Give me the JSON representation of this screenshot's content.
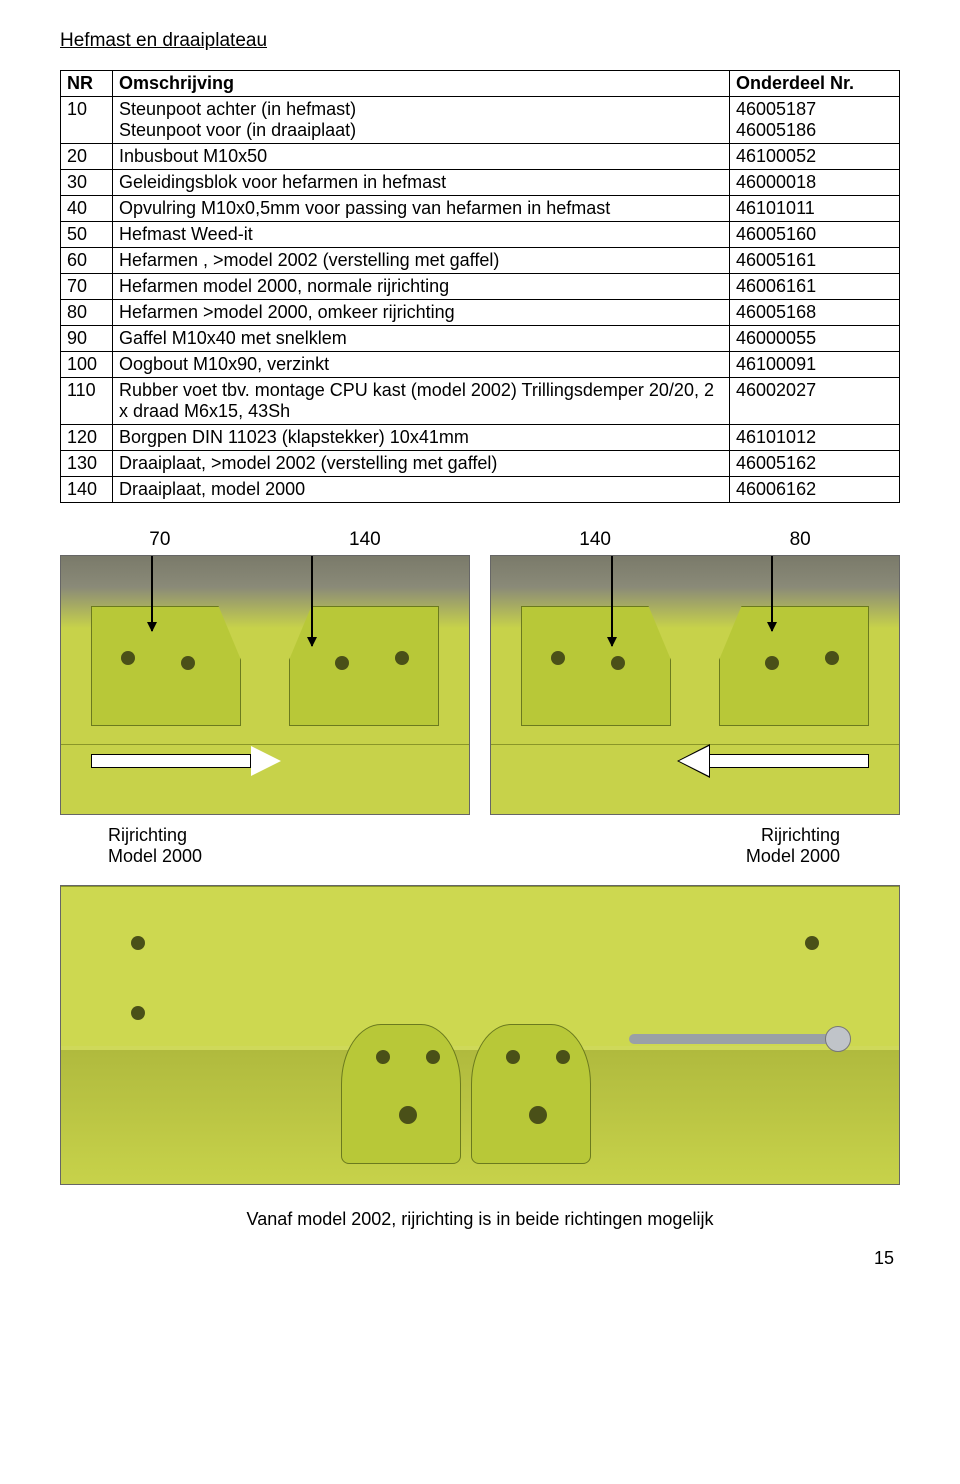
{
  "section_title": "Hefmast en draaiplateau",
  "table": {
    "headers": {
      "nr": "NR",
      "desc": "Omschrijving",
      "part": "Onderdeel Nr."
    },
    "rows": [
      {
        "nr": "10",
        "desc": "Steunpoot achter (in hefmast)\nSteunpoot voor (in draaiplaat)",
        "part": "46005187\n46005186"
      },
      {
        "nr": "20",
        "desc": "Inbusbout M10x50",
        "part": "46100052"
      },
      {
        "nr": "30",
        "desc": "Geleidingsblok voor hefarmen in hefmast",
        "part": "46000018"
      },
      {
        "nr": "40",
        "desc": "Opvulring M10x0,5mm voor passing van hefarmen in hefmast",
        "part": "46101011"
      },
      {
        "nr": "50",
        "desc": "Hefmast Weed-it",
        "part": "46005160"
      },
      {
        "nr": "60",
        "desc": "Hefarmen , >model 2002 (verstelling met gaffel)",
        "part": "46005161"
      },
      {
        "nr": "70",
        "desc": "Hefarmen model 2000, normale rijrichting",
        "part": "46006161"
      },
      {
        "nr": "80",
        "desc": "Hefarmen >model 2000, omkeer rijrichting",
        "part": "46005168"
      },
      {
        "nr": "90",
        "desc": "Gaffel M10x40 met snelklem",
        "part": "46000055"
      },
      {
        "nr": "100",
        "desc": "Oogbout M10x90, verzinkt",
        "part": "46100091"
      },
      {
        "nr": "110",
        "desc": "Rubber voet tbv. montage CPU kast (model 2002) Trillingsdemper 20/20, 2 x draad M6x15, 43Sh",
        "part": "46002027"
      },
      {
        "nr": "120",
        "desc": "Borgpen DIN 11023 (klapstekker) 10x41mm",
        "part": "46101012"
      },
      {
        "nr": "130",
        "desc": "Draaiplaat, >model 2002 (verstelling met gaffel)",
        "part": "46005162"
      },
      {
        "nr": "140",
        "desc": "Draaiplaat, model 2000",
        "part": "46006162"
      }
    ]
  },
  "photo_top": {
    "left_labels": [
      "70",
      "140"
    ],
    "right_labels": [
      "140",
      "80"
    ]
  },
  "captions": {
    "left_line1": "Rijrichting",
    "left_line2": "Model 2000",
    "right_line1": "Rijrichting",
    "right_line2": "Model 2000"
  },
  "footer_note": "Vanaf  model 2002, rijrichting is in beide richtingen mogelijk",
  "page_number": "15",
  "colors": {
    "machine_green": "#c7d24a",
    "bracket_green": "#b8c838",
    "hole": "#4a5018",
    "border": "#000000",
    "background": "#ffffff"
  }
}
